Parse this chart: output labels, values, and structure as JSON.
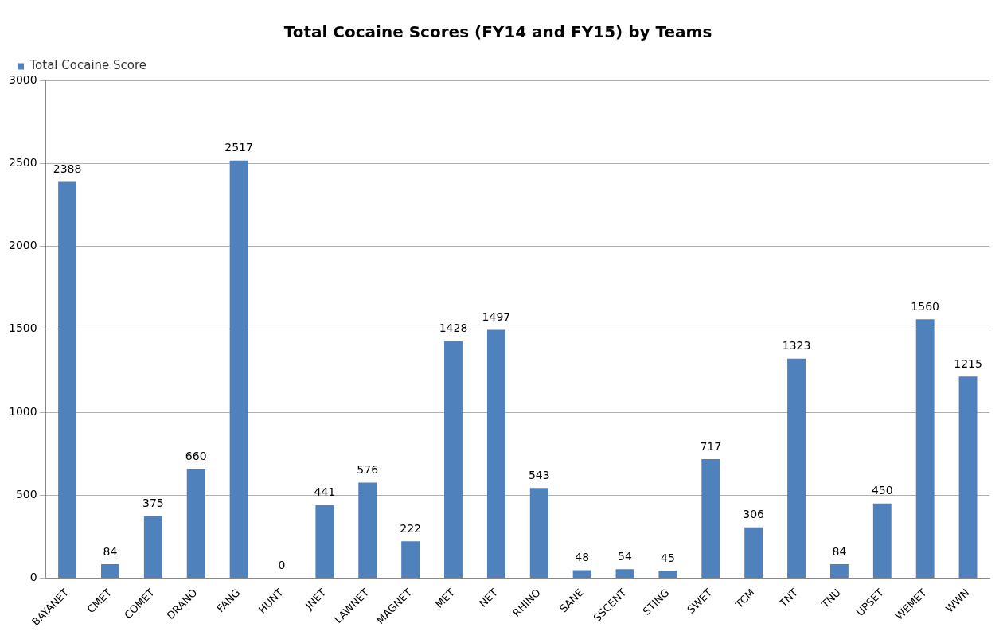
{
  "chart_data": {
    "type": "bar",
    "title": "Total Cocaine Scores (FY14 and FY15) by Teams",
    "categories": [
      "BAYANET",
      "CMET",
      "COMET",
      "DRANO",
      "FANG",
      "HUNT",
      "JNET",
      "LAWNET",
      "MAGNET",
      "MET",
      "NET",
      "RHINO",
      "SANE",
      "SSCENT",
      "STING",
      "SWET",
      "TCM",
      "TNT",
      "TNU",
      "UPSET",
      "WEMET",
      "WWN"
    ],
    "series": [
      {
        "name": "Total Cocaine Score",
        "color": "#4f81bd",
        "values": [
          2388,
          84,
          375,
          660,
          2517,
          0,
          441,
          576,
          222,
          1428,
          1497,
          543,
          48,
          54,
          45,
          717,
          306,
          1323,
          84,
          450,
          1560,
          1215
        ]
      }
    ],
    "ylim": [
      0,
      3000
    ],
    "yticks": [
      0,
      500,
      1000,
      1500,
      2000,
      2500,
      3000
    ],
    "grid": "y",
    "legend": "top left",
    "data_labels": true
  }
}
